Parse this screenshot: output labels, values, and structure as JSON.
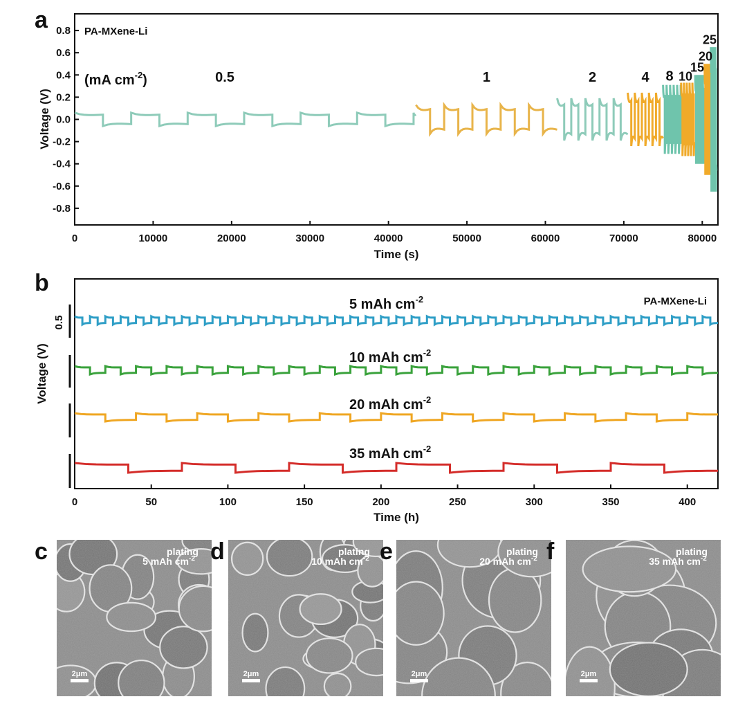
{
  "chart_data": [
    {
      "panel": "a",
      "type": "line",
      "title": "PA-MXene-Li",
      "xlabel": "Time (s)",
      "ylabel": "Voltage (V)",
      "xlim": [
        0,
        82000
      ],
      "ylim": [
        -0.95,
        0.95
      ],
      "xticks": [
        0,
        10000,
        20000,
        30000,
        40000,
        50000,
        60000,
        70000,
        80000
      ],
      "yticks": [
        "0.8",
        "0.6",
        "0.4",
        "0.2",
        "0.0",
        "-0.2",
        "-0.4",
        "-0.6",
        "-0.8"
      ],
      "yticks_values": [
        0.8,
        0.6,
        0.4,
        0.2,
        0.0,
        -0.2,
        -0.4,
        -0.6,
        -0.8
      ],
      "unit_label": "(mA cm",
      "unit_sup": "-2",
      "unit_close": ")",
      "segments": [
        {
          "current": "0.5",
          "t_start": 0,
          "t_end": 43500,
          "half_period": 3600,
          "amp": 0.06,
          "color": "#8ECBB9"
        },
        {
          "current": "1",
          "t_start": 43500,
          "t_end": 61500,
          "half_period": 1800,
          "amp": 0.13,
          "color": "#E8B44A"
        },
        {
          "current": "2",
          "t_start": 61500,
          "t_end": 70500,
          "half_period": 900,
          "amp": 0.19,
          "color": "#8ECBB9"
        },
        {
          "current": "4",
          "t_start": 70500,
          "t_end": 75000,
          "half_period": 450,
          "amp": 0.24,
          "color": "#F0AA2A"
        },
        {
          "current": "8",
          "t_start": 75000,
          "t_end": 77300,
          "half_period": 225,
          "amp": 0.31,
          "color": "#6FC4AC"
        },
        {
          "current": "10",
          "t_start": 77300,
          "t_end": 79100,
          "half_period": 180,
          "amp": 0.33,
          "color": "#F0AA2A"
        },
        {
          "current": "15",
          "t_start": 79100,
          "t_end": 80300,
          "half_period": 120,
          "amp": 0.4,
          "color": "#6FC4AC"
        },
        {
          "current": "20",
          "t_start": 80300,
          "t_end": 81100,
          "half_period": 90,
          "amp": 0.5,
          "color": "#F0AA2A"
        },
        {
          "current": "25",
          "t_start": 81100,
          "t_end": 81800,
          "half_period": 72,
          "amp": 0.65,
          "color": "#6FC4AC"
        }
      ]
    },
    {
      "panel": "b",
      "type": "line",
      "title": "PA-MXene-Li",
      "xlabel": "Time (h)",
      "ylabel": "Voltage (V)",
      "xlim": [
        0,
        420
      ],
      "xticks": [
        0,
        50,
        100,
        150,
        200,
        250,
        300,
        350,
        400
      ],
      "scale_bar_label": "0.5",
      "series": [
        {
          "name": "5 mAh cm",
          "sup": "-2",
          "half_period_h": 5,
          "color": "#2E9EC6"
        },
        {
          "name": "10 mAh cm",
          "sup": "-2",
          "half_period_h": 10,
          "color": "#3AA23C"
        },
        {
          "name": "20 mAh cm",
          "sup": "-2",
          "half_period_h": 20,
          "color": "#EFA622"
        },
        {
          "name": "35 mAh cm",
          "sup": "-2",
          "half_period_h": 35,
          "color": "#D42D2A"
        }
      ]
    }
  ],
  "sem_panels": [
    {
      "letter": "c",
      "line1": "plating",
      "line2": "5 mAh cm",
      "sup": "-2",
      "scale": "2μm"
    },
    {
      "letter": "d",
      "line1": "plating",
      "line2": "10 mAh cm",
      "sup": "-2",
      "scale": "2μm"
    },
    {
      "letter": "e",
      "line1": "plating",
      "line2": "20 mAh cm",
      "sup": "-2",
      "scale": "2μm"
    },
    {
      "letter": "f",
      "line1": "plating",
      "line2": "35 mAh cm",
      "sup": "-2",
      "scale": "2μm"
    }
  ],
  "panel_letters": {
    "a": "a",
    "b": "b"
  }
}
